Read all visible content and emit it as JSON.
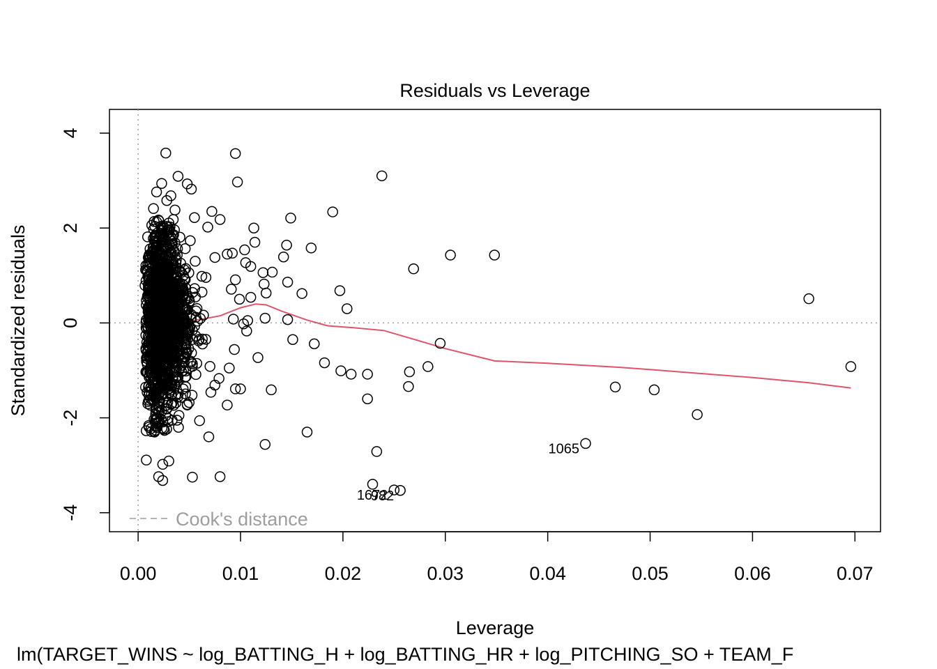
{
  "chart_data": {
    "type": "scatter",
    "title": "Residuals vs Leverage",
    "xlabel": "Leverage",
    "ylabel": "Standardized residuals",
    "subtitle": "lm(TARGET_WINS ~ log_BATTING_H + log_BATTING_HR + log_PITCHING_SO + TEAM_F",
    "xlim": [
      -0.0028,
      0.0725
    ],
    "ylim": [
      -4.4,
      4.5
    ],
    "x_ticks": [
      "0.00",
      "0.01",
      "0.02",
      "0.03",
      "0.04",
      "0.05",
      "0.06",
      "0.07"
    ],
    "x_tick_values": [
      0,
      0.01,
      0.02,
      0.03,
      0.04,
      0.05,
      0.06,
      0.07
    ],
    "y_ticks": [
      "-4",
      "-2",
      "0",
      "2",
      "4"
    ],
    "y_tick_values": [
      -4,
      -2,
      0,
      2,
      4
    ],
    "grid": false,
    "legend": {
      "position": "bottom-left",
      "entries": [
        "Cook's distance"
      ]
    },
    "reference_lines": {
      "h": 0,
      "v": 0,
      "style": "dotted",
      "color": "#9e9e9e"
    },
    "point_color": "#000000",
    "smooth_color": "#DF536B",
    "points": [
      {
        "x": 0.0027,
        "y": 3.58
      },
      {
        "x": 0.0095,
        "y": 3.57
      },
      {
        "x": 0.0238,
        "y": 3.1
      },
      {
        "x": 0.0039,
        "y": 3.09
      },
      {
        "x": 0.0097,
        "y": 2.97
      },
      {
        "x": 0.0023,
        "y": 2.94
      },
      {
        "x": 0.0048,
        "y": 2.93
      },
      {
        "x": 0.0052,
        "y": 2.82
      },
      {
        "x": 0.0018,
        "y": 2.76
      },
      {
        "x": 0.0032,
        "y": 2.68
      },
      {
        "x": 0.0028,
        "y": 2.58
      },
      {
        "x": 0.0036,
        "y": 2.38
      },
      {
        "x": 0.0072,
        "y": 2.35
      },
      {
        "x": 0.019,
        "y": 2.34
      },
      {
        "x": 0.0015,
        "y": 2.41
      },
      {
        "x": 0.008,
        "y": 2.18
      },
      {
        "x": 0.0149,
        "y": 2.21
      },
      {
        "x": 0.0055,
        "y": 2.22
      },
      {
        "x": 0.0113,
        "y": 2.0
      },
      {
        "x": 0.0068,
        "y": 2.02
      },
      {
        "x": 0.0114,
        "y": 1.7
      },
      {
        "x": 0.0145,
        "y": 1.64
      },
      {
        "x": 0.0169,
        "y": 1.58
      },
      {
        "x": 0.0104,
        "y": 1.54
      },
      {
        "x": 0.0305,
        "y": 1.43
      },
      {
        "x": 0.0348,
        "y": 1.43
      },
      {
        "x": 0.0087,
        "y": 1.45
      },
      {
        "x": 0.0092,
        "y": 1.47
      },
      {
        "x": 0.0142,
        "y": 1.39
      },
      {
        "x": 0.0075,
        "y": 1.38
      },
      {
        "x": 0.0105,
        "y": 1.27
      },
      {
        "x": 0.011,
        "y": 1.19
      },
      {
        "x": 0.0122,
        "y": 1.06
      },
      {
        "x": 0.0131,
        "y": 1.07
      },
      {
        "x": 0.0269,
        "y": 1.14
      },
      {
        "x": 0.0095,
        "y": 0.91
      },
      {
        "x": 0.0146,
        "y": 0.86
      },
      {
        "x": 0.0123,
        "y": 0.82
      },
      {
        "x": 0.0091,
        "y": 0.71
      },
      {
        "x": 0.0197,
        "y": 0.68
      },
      {
        "x": 0.016,
        "y": 0.62
      },
      {
        "x": 0.0125,
        "y": 0.63
      },
      {
        "x": 0.011,
        "y": 0.54
      },
      {
        "x": 0.0099,
        "y": 0.5
      },
      {
        "x": 0.0204,
        "y": 0.3
      },
      {
        "x": 0.0655,
        "y": 0.51
      },
      {
        "x": 0.0093,
        "y": 0.08
      },
      {
        "x": 0.0124,
        "y": 0.1
      },
      {
        "x": 0.0146,
        "y": 0.07
      },
      {
        "x": 0.0103,
        "y": -0.02
      },
      {
        "x": 0.0107,
        "y": 0.05
      },
      {
        "x": 0.0106,
        "y": -0.17
      },
      {
        "x": 0.0151,
        "y": -0.35
      },
      {
        "x": 0.0172,
        "y": -0.44
      },
      {
        "x": 0.0295,
        "y": -0.43
      },
      {
        "x": 0.0094,
        "y": -0.56
      },
      {
        "x": 0.0117,
        "y": -0.73
      },
      {
        "x": 0.0182,
        "y": -0.84
      },
      {
        "x": 0.0283,
        "y": -0.92
      },
      {
        "x": 0.0089,
        "y": -0.95
      },
      {
        "x": 0.0198,
        "y": -1.01
      },
      {
        "x": 0.0208,
        "y": -1.08
      },
      {
        "x": 0.0224,
        "y": -1.08
      },
      {
        "x": 0.0265,
        "y": -1.03
      },
      {
        "x": 0.0696,
        "y": -0.92
      },
      {
        "x": 0.0079,
        "y": -1.17
      },
      {
        "x": 0.0075,
        "y": -1.31
      },
      {
        "x": 0.0264,
        "y": -1.34
      },
      {
        "x": 0.0466,
        "y": -1.35
      },
      {
        "x": 0.0504,
        "y": -1.41
      },
      {
        "x": 0.013,
        "y": -1.41
      },
      {
        "x": 0.01,
        "y": -1.39
      },
      {
        "x": 0.0095,
        "y": -1.39
      },
      {
        "x": 0.0224,
        "y": -1.6
      },
      {
        "x": 0.0087,
        "y": -1.73
      },
      {
        "x": 0.0546,
        "y": -1.93
      },
      {
        "x": 0.006,
        "y": -2.06
      },
      {
        "x": 0.0038,
        "y": -2.05
      },
      {
        "x": 0.0016,
        "y": -2.3
      },
      {
        "x": 0.0165,
        "y": -2.3
      },
      {
        "x": 0.0069,
        "y": -2.4
      },
      {
        "x": 0.0124,
        "y": -2.56
      },
      {
        "x": 0.0437,
        "y": -2.54
      },
      {
        "x": 0.0233,
        "y": -2.71
      },
      {
        "x": 0.0008,
        "y": -2.89
      },
      {
        "x": 0.003,
        "y": -2.91
      },
      {
        "x": 0.0024,
        "y": -2.98
      },
      {
        "x": 0.002,
        "y": -3.24
      },
      {
        "x": 0.0053,
        "y": -3.25
      },
      {
        "x": 0.008,
        "y": -3.24
      },
      {
        "x": 0.0024,
        "y": -3.32
      },
      {
        "x": 0.0229,
        "y": -3.4
      },
      {
        "x": 0.025,
        "y": -3.52
      },
      {
        "x": 0.0256,
        "y": -3.53
      }
    ],
    "labelled_points": [
      {
        "label": "1065",
        "x": 0.0437,
        "y": -2.54
      },
      {
        "label": "1672",
        "x": 0.025,
        "y": -3.52
      },
      {
        "label": "982",
        "x": 0.0256,
        "y": -3.53
      }
    ],
    "smoother": {
      "x": [
        0.0007,
        0.0015,
        0.0025,
        0.004,
        0.006,
        0.008,
        0.01,
        0.0115,
        0.0125,
        0.014,
        0.0165,
        0.0185,
        0.021,
        0.024,
        0.027,
        0.03,
        0.0348,
        0.04,
        0.0466,
        0.0504,
        0.0546,
        0.06,
        0.0655,
        0.0696
      ],
      "y": [
        -0.03,
        0.0,
        -0.04,
        0.01,
        0.07,
        0.15,
        0.32,
        0.4,
        0.38,
        0.25,
        0.06,
        -0.06,
        -0.1,
        -0.16,
        -0.35,
        -0.54,
        -0.8,
        -0.85,
        -0.93,
        -0.99,
        -1.06,
        -1.15,
        -1.26,
        -1.37
      ]
    }
  }
}
